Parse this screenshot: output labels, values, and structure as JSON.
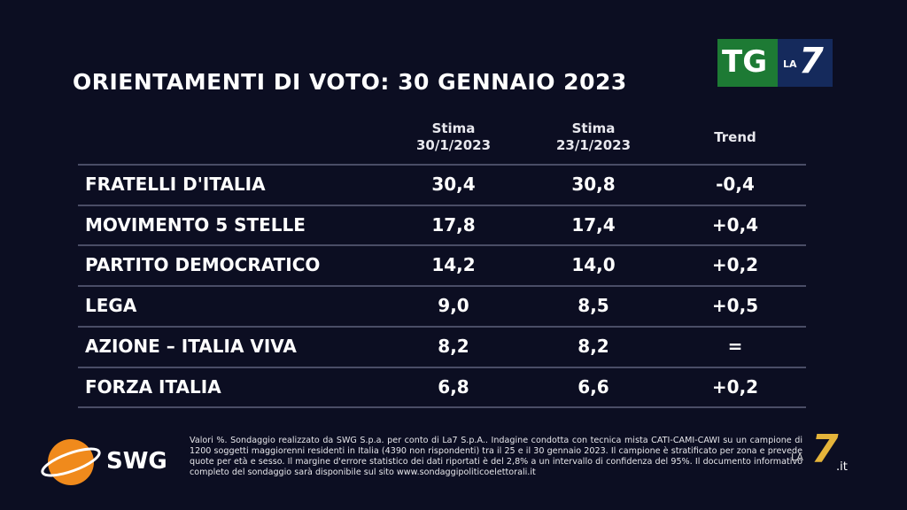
{
  "logo": {
    "tg": "TG",
    "la": "LA",
    "seven": "7"
  },
  "title": "ORIENTAMENTI DI VOTO: 30 GENNAIO 2023",
  "table": {
    "headers": [
      [
        "Stima",
        "30/1/2023"
      ],
      [
        "Stima",
        "23/1/2023"
      ],
      [
        "Trend"
      ]
    ],
    "rows": [
      [
        "FRATELLI D'ITALIA",
        "30,4",
        "30,8",
        "-0,4"
      ],
      [
        "MOVIMENTO 5 STELLE",
        "17,8",
        "17,4",
        "+0,4"
      ],
      [
        "PARTITO DEMOCRATICO",
        "14,2",
        "14,0",
        "+0,2"
      ],
      [
        "LEGA",
        "9,0",
        "8,5",
        "+0,5"
      ],
      [
        "AZIONE – ITALIA VIVA",
        "8,2",
        "8,2",
        "="
      ],
      [
        "FORZA ITALIA",
        "6,8",
        "6,6",
        "+0,2"
      ]
    ]
  },
  "footnote": "Valori %. Sondaggio realizzato da SWG S.p.a. per conto di La7 S.p.A.. Indagine condotta con tecnica mista CATI-CAMI-CAWI su un campione di 1200 soggetti maggiorenni residenti in Italia (4390 non rispondenti) tra il 25 e il 30 gennaio 2023. Il campione è stratificato per zona e prevede quote per età e sesso. Il margine d'errore statistico dei dati riportati è del 2,8% a un intervallo di confidenza del 95%. Il documento informativo completo del sondaggio sarà disponibile sul sito www.sondaggipoliticoelettorali.it",
  "footer_logos": {
    "swg": "SWG",
    "la": "LA",
    "seven": "7",
    "suffix": ".it"
  }
}
